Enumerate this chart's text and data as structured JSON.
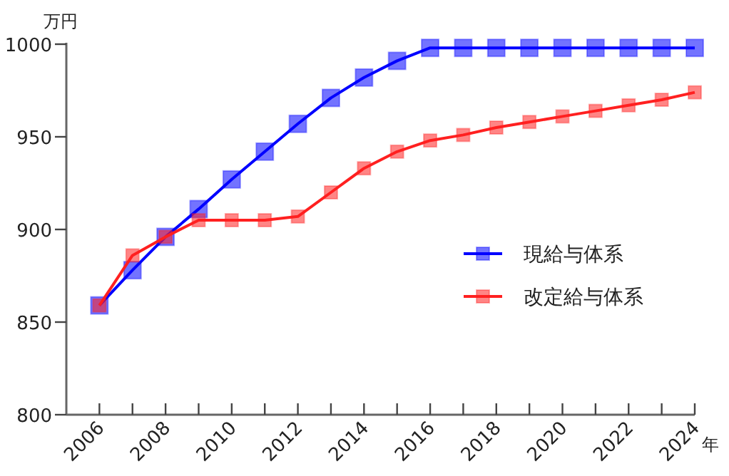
{
  "chart_data": {
    "type": "line",
    "ylabel": "万円",
    "xlabel": "年",
    "x": [
      2006,
      2007,
      2008,
      2009,
      2010,
      2011,
      2012,
      2013,
      2014,
      2015,
      2016,
      2017,
      2018,
      2019,
      2020,
      2021,
      2022,
      2023,
      2024
    ],
    "series": [
      {
        "name": "現給与体系",
        "color": "#0000ff",
        "values": [
          859,
          878,
          896,
          911,
          927,
          942,
          957,
          971,
          982,
          991,
          998,
          998,
          998,
          998,
          998,
          998,
          998,
          998,
          998
        ]
      },
      {
        "name": "改定給与体系",
        "color": "#ff2020",
        "values": [
          859,
          886,
          896,
          905,
          905,
          905,
          907,
          920,
          933,
          942,
          948,
          951,
          955,
          958,
          961,
          964,
          967,
          970,
          974
        ]
      }
    ],
    "xlim": [
      2005,
      2024
    ],
    "ylim": [
      800,
      1000
    ],
    "xticks": [
      2006,
      {
        "value": 2007,
        "label": null
      },
      2008,
      {
        "value": 2009,
        "label": null
      },
      2010,
      {
        "value": 2011,
        "label": null
      },
      2012,
      {
        "value": 2013,
        "label": null
      },
      2014,
      {
        "value": 2015,
        "label": null
      },
      2016,
      {
        "value": 2017,
        "label": null
      },
      2018,
      {
        "value": 2019,
        "label": null
      },
      2020,
      {
        "value": 2021,
        "label": null
      },
      2022,
      {
        "value": 2023,
        "label": null
      },
      2024
    ],
    "yticks": [
      800,
      850,
      900,
      950,
      1000
    ],
    "grid": false,
    "legend": "right",
    "marker": "square",
    "line_style": "solid"
  }
}
